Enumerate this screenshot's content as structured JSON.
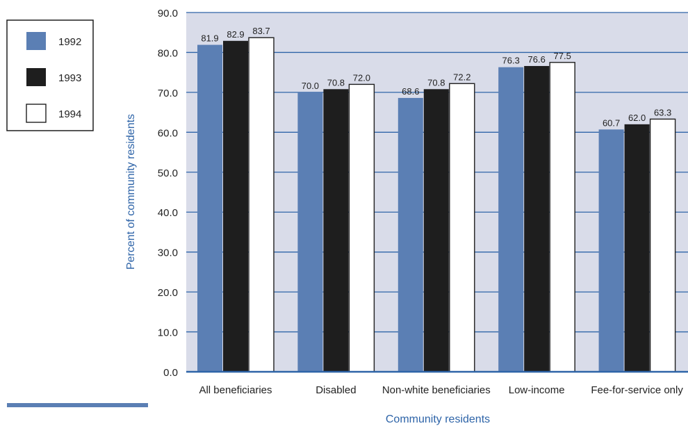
{
  "chart_data": {
    "type": "bar",
    "categories": [
      "All beneficiaries",
      "Disabled",
      "Non-white beneficiaries",
      "Low-income",
      "Fee-for-service only"
    ],
    "series": [
      {
        "name": "1992",
        "values": [
          81.9,
          70.0,
          68.6,
          76.3,
          60.7
        ],
        "color": "#5b7fb4"
      },
      {
        "name": "1993",
        "values": [
          82.9,
          70.8,
          70.8,
          76.6,
          62.0
        ],
        "color": "#1e1e1e"
      },
      {
        "name": "1994",
        "values": [
          83.7,
          72.0,
          72.2,
          77.5,
          63.3
        ],
        "color": "#ffffff"
      }
    ],
    "value_labels": [
      [
        "81.9",
        "70.0",
        "68.6",
        "76.3",
        "60.7"
      ],
      [
        "82.9",
        "70.8",
        "70.8",
        "76.6",
        "62.0"
      ],
      [
        "83.7",
        "72.0",
        "72.2",
        "77.5",
        "63.3"
      ]
    ],
    "xlabel": "Community residents",
    "ylabel": "Percent of community residents",
    "ylim": [
      0,
      90
    ],
    "yticks": [
      0,
      10,
      20,
      30,
      40,
      50,
      60,
      70,
      80,
      90
    ],
    "ytick_labels": [
      "0.0",
      "10.0",
      "20.0",
      "30.0",
      "40.0",
      "50.0",
      "60.0",
      "70.0",
      "80.0",
      "90.0"
    ],
    "grid": true,
    "legend_position": "top-left",
    "colors": {
      "plot_background": "#d9dce9",
      "gridline": "#2e64a8",
      "axis_title": "#2e64a8"
    }
  }
}
